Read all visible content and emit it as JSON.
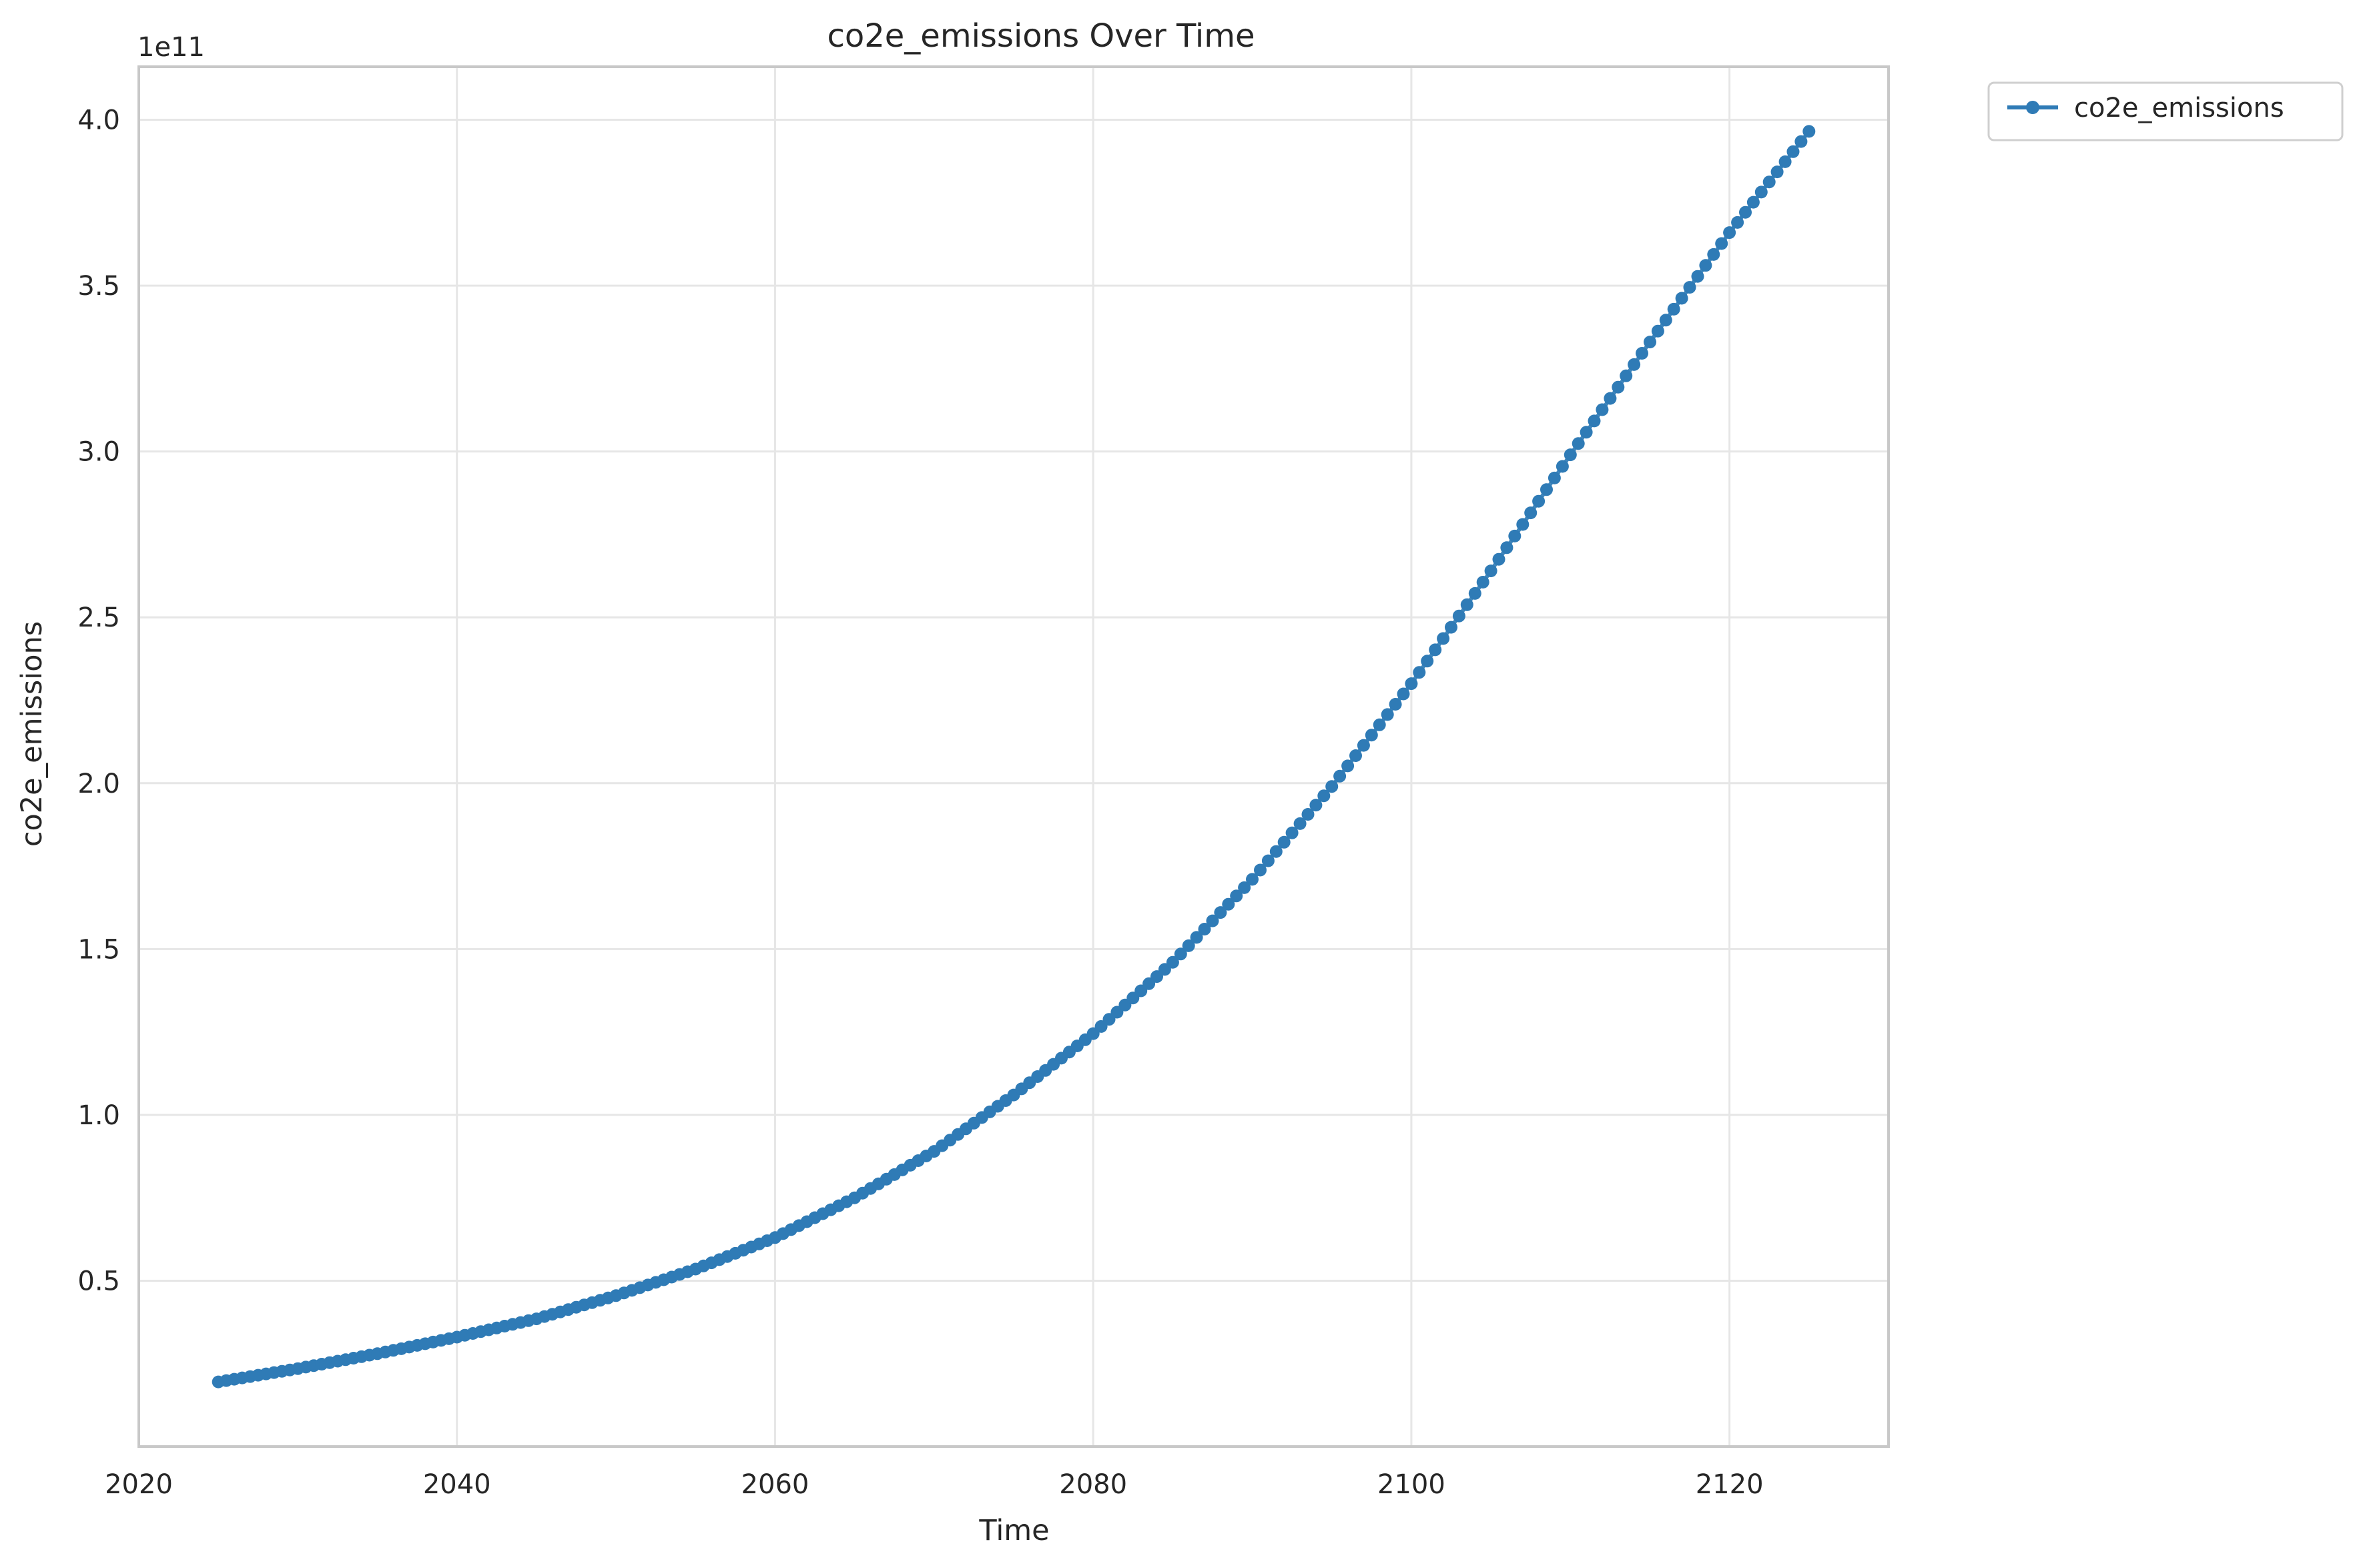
{
  "chart_data": {
    "type": "line",
    "title": "co2e_emissions Over Time",
    "xlabel": "Time",
    "ylabel": "co2e_emissions",
    "y_offset_label": "1e11",
    "xlim": [
      2020,
      2130
    ],
    "ylim": [
      0.0,
      4.16
    ],
    "x_ticks": [
      2020,
      2040,
      2060,
      2080,
      2100,
      2120
    ],
    "x_tick_labels": [
      "2020",
      "2040",
      "2060",
      "2080",
      "2100",
      "2120"
    ],
    "y_ticks": [
      0.5,
      1.0,
      1.5,
      2.0,
      2.5,
      3.0,
      3.5,
      4.0
    ],
    "y_tick_labels": [
      "0.5",
      "1.0",
      "1.5",
      "2.0",
      "2.5",
      "3.0",
      "3.5",
      "4.0"
    ],
    "grid": true,
    "legend_placement": "outside-top-right",
    "series": [
      {
        "name": "co2e_emissions",
        "color": "#2f7bb6",
        "marker": "circle",
        "x": [
          2025,
          2030,
          2035,
          2040,
          2045,
          2050,
          2055,
          2060,
          2065,
          2070,
          2075,
          2080,
          2085,
          2090,
          2095,
          2100,
          2105,
          2110,
          2115,
          2120,
          2125
        ],
        "values": [
          0.195,
          0.235,
          0.28,
          0.33,
          0.385,
          0.455,
          0.535,
          0.63,
          0.75,
          0.89,
          1.06,
          1.245,
          1.46,
          1.71,
          1.99,
          2.3,
          2.64,
          2.99,
          3.33,
          3.66,
          3.965
        ]
      }
    ]
  }
}
